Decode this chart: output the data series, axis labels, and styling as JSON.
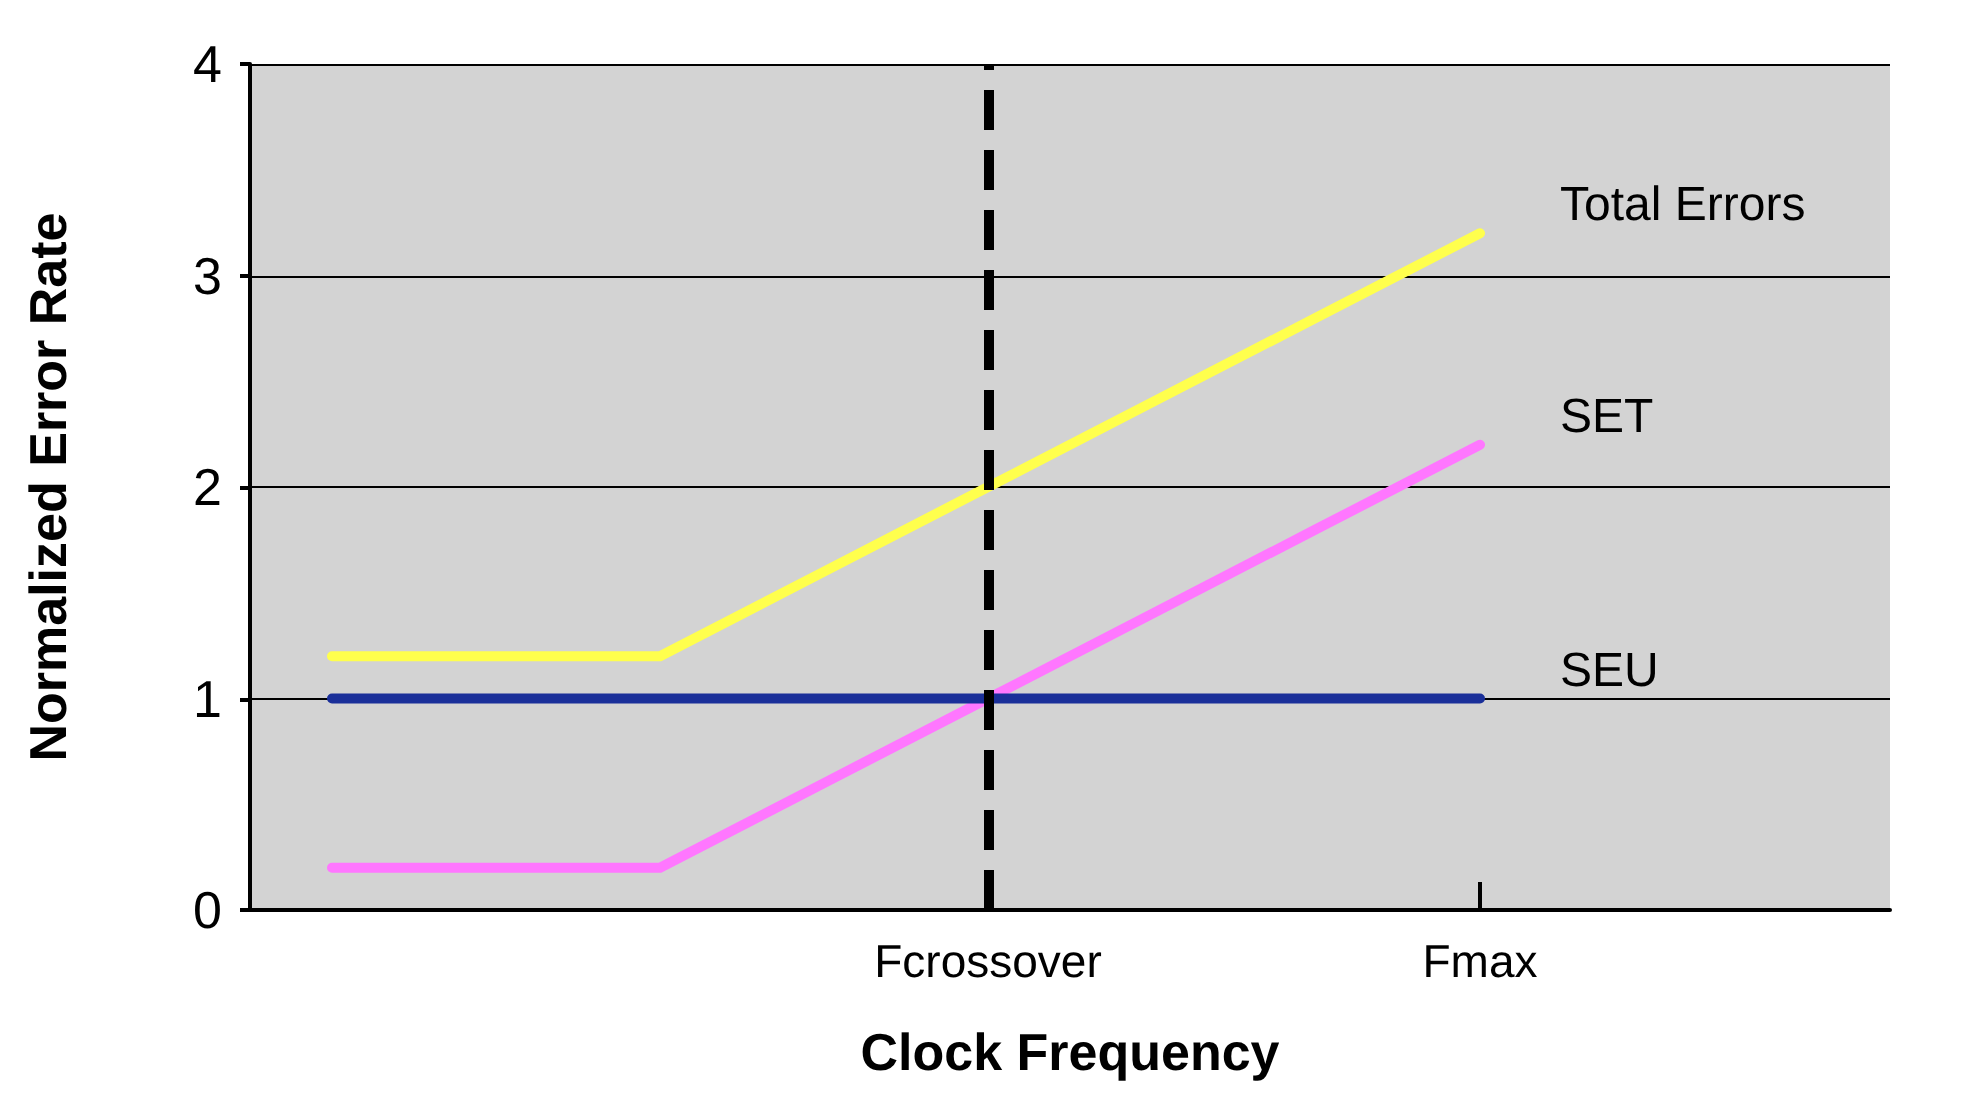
{
  "chart_data": {
    "type": "line",
    "xlabel": "Clock Frequency",
    "ylabel": "Normalized Error Rate",
    "categories": [
      null,
      null,
      null,
      null,
      "Fcrossover",
      null,
      null,
      "Fmax",
      null,
      null
    ],
    "ylim": [
      0,
      4
    ],
    "yticks": [
      0,
      1,
      2,
      3,
      4
    ],
    "grid": "y",
    "legend": false,
    "marker": "none",
    "line_style": "solid",
    "series": [
      {
        "name": "Total Errors",
        "color": "#ffff4d",
        "values": [
          1.2,
          1.2,
          1.2,
          1.6,
          2.0,
          2.4,
          2.8,
          3.2,
          null,
          null
        ]
      },
      {
        "name": "SET",
        "color": "#ff77ff",
        "values": [
          0.2,
          0.2,
          0.2,
          0.6,
          1.0,
          1.4,
          1.8,
          2.2,
          null,
          null
        ]
      },
      {
        "name": "SEU",
        "color": "#1a2f99",
        "values": [
          1,
          1,
          1,
          1,
          1,
          1,
          1,
          1,
          null,
          null
        ]
      }
    ],
    "ref_lines": [
      {
        "axis": "x",
        "value": "Fcrossover",
        "color": "#000000",
        "line_style": "dashed"
      }
    ]
  }
}
